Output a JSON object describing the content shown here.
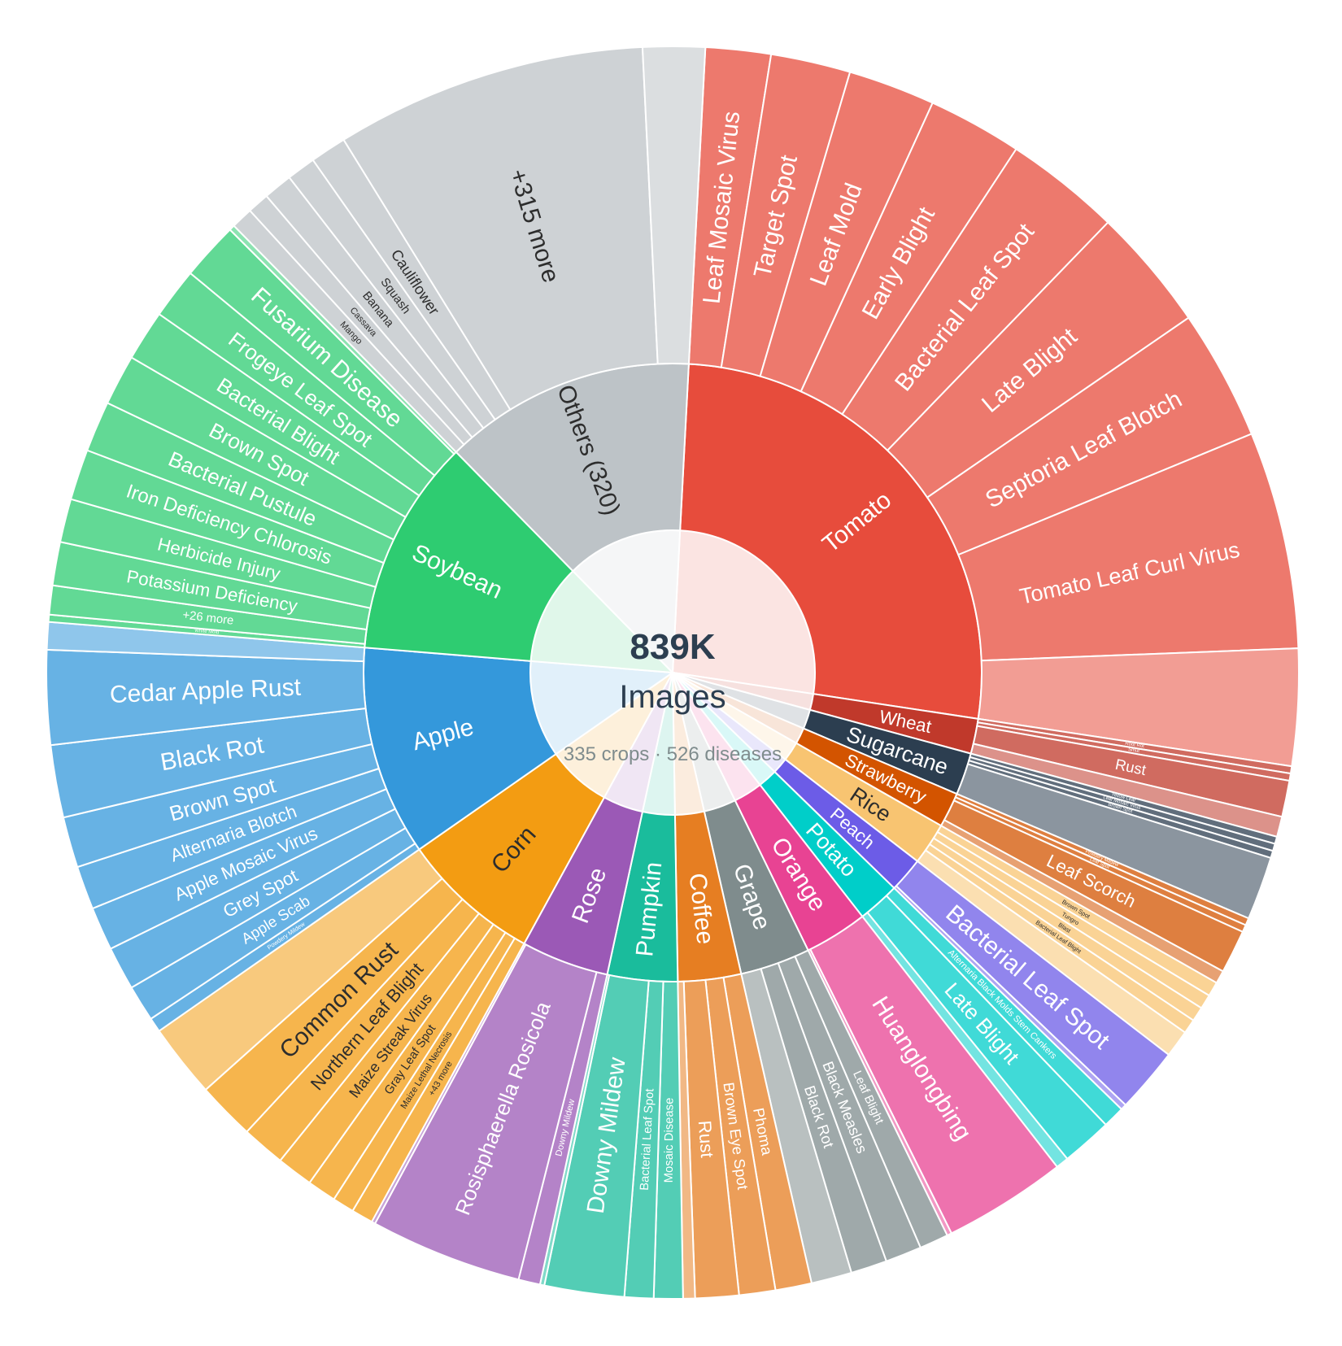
{
  "chart_data": {
    "type": "sunburst",
    "center": {
      "total": "839K",
      "unit": "Images",
      "subtitle": "335 crops · 526 diseases"
    },
    "crops": [
      {
        "name": "Tomato",
        "color": "#e74c3c",
        "weight": 145,
        "diseases": [
          {
            "name": "Leaf Mosaic Virus",
            "weight": 9
          },
          {
            "name": "Target Spot",
            "weight": 11
          },
          {
            "name": "Leaf Mold",
            "weight": 12
          },
          {
            "name": "Early Blight",
            "weight": 13
          },
          {
            "name": "Bacterial Leaf Spot",
            "weight": 16
          },
          {
            "name": "Late Blight",
            "weight": 17
          },
          {
            "name": "Septoria Leaf Blotch",
            "weight": 18
          },
          {
            "name": "Tomato Leaf Curl Virus",
            "weight": 30
          }
        ]
      },
      {
        "name": "Wheat",
        "color": "#c0392b",
        "weight": 10,
        "diseases": [
          {
            "name": "Root Rot",
            "weight": 1
          },
          {
            "name": "Smut",
            "weight": 1
          },
          {
            "name": "Rust",
            "weight": 5
          }
        ]
      },
      {
        "name": "Sugarcane",
        "color": "#2c3e50",
        "weight": 12,
        "diseases": [
          {
            "name": "Yellow Leaf",
            "weight": 1
          },
          {
            "name": "Leaf Mosaic Virus",
            "weight": 1
          },
          {
            "name": "Brown Spot",
            "weight": 1
          }
        ]
      },
      {
        "name": "Strawberry",
        "color": "#d35400",
        "weight": 10,
        "diseases": [
          {
            "name": "Powdery Mildew",
            "weight": 1
          },
          {
            "name": "Leaf Spot",
            "weight": 1
          },
          {
            "name": "Leaf Scorch",
            "weight": 6
          }
        ]
      },
      {
        "name": "Rice",
        "color": "#f8c471",
        "weight": 12,
        "diseases": [
          {
            "name": "Brown Spot",
            "weight": 2
          },
          {
            "name": "Tungro",
            "weight": 2
          },
          {
            "name": "Blast",
            "weight": 2
          },
          {
            "name": "Bacterial Leaf Blight",
            "weight": 2
          }
        ]
      },
      {
        "name": "Peach",
        "color": "#6c5ce7",
        "weight": 10,
        "diseases": [
          {
            "name": "Bacterial Leaf Spot",
            "weight": 9
          }
        ]
      },
      {
        "name": "Potato",
        "color": "#00cec9",
        "weight": 12,
        "diseases": [
          {
            "name": "Alternaria Black Molds Stem Cankers",
            "weight": 3
          },
          {
            "name": "Late Blight",
            "weight": 7
          }
        ]
      },
      {
        "name": "Orange",
        "color": "#e84393",
        "weight": 18,
        "diseases": [
          {
            "name": "Huanglongbing",
            "weight": 17
          }
        ]
      },
      {
        "name": "Grape",
        "color": "#7f8c8d",
        "weight": 20,
        "diseases": [
          {
            "name": "Leaf Blight",
            "weight": 4
          },
          {
            "name": "Black Measles",
            "weight": 5
          },
          {
            "name": "Black Rot",
            "weight": 5
          }
        ]
      },
      {
        "name": "Coffee",
        "color": "#e67e22",
        "weight": 18,
        "diseases": [
          {
            "name": "Phoma",
            "weight": 5
          },
          {
            "name": "Brown Eye Spot",
            "weight": 5
          },
          {
            "name": "Rust",
            "weight": 6
          }
        ]
      },
      {
        "name": "Pumpkin",
        "color": "#1abc9c",
        "weight": 20,
        "diseases": [
          {
            "name": "Mosaic Disease",
            "weight": 4
          },
          {
            "name": "Bacterial Leaf Spot",
            "weight": 4
          },
          {
            "name": "Downy Mildew",
            "weight": 11
          }
        ]
      },
      {
        "name": "Rose",
        "color": "#9b59b6",
        "weight": 25,
        "diseases": [
          {
            "name": "Downy Mildew",
            "weight": 3
          },
          {
            "name": "Rosisphaerella Rosicola",
            "weight": 21
          }
        ]
      },
      {
        "name": "Corn",
        "color": "#f39c12",
        "weight": 40,
        "diseases": [
          {
            "name": "+43 more",
            "weight": 3
          },
          {
            "name": "Maize Lethal Necrosis",
            "weight": 3
          },
          {
            "name": "Gray Leaf Spot",
            "weight": 4
          },
          {
            "name": "Maize Streak Virus",
            "weight": 5
          },
          {
            "name": "Northern Leaf Blight",
            "weight": 6
          },
          {
            "name": "Common Rust",
            "weight": 8
          }
        ]
      },
      {
        "name": "Apple",
        "color": "#3498db",
        "weight": 60,
        "diseases": [
          {
            "name": "Powdery Mildew",
            "weight": 2
          },
          {
            "name": "Apple Scab",
            "weight": 5
          },
          {
            "name": "Grey Spot",
            "weight": 6
          },
          {
            "name": "Apple Mosaic Virus",
            "weight": 6
          },
          {
            "name": "Alternaria Blotch",
            "weight": 6
          },
          {
            "name": "Brown Spot",
            "weight": 7
          },
          {
            "name": "Black Rot",
            "weight": 10
          },
          {
            "name": "Cedar Apple Rust",
            "weight": 13
          }
        ]
      },
      {
        "name": "Soybean",
        "color": "#2ecc71",
        "weight": 62,
        "diseases": [
          {
            "name": "White Mold",
            "weight": 1
          },
          {
            "name": "+26 more",
            "weight": 4
          },
          {
            "name": "Potassium Deficiency",
            "weight": 6
          },
          {
            "name": "Herbicide Injury",
            "weight": 6
          },
          {
            "name": "Iron Deficiency Chlorosis",
            "weight": 7
          },
          {
            "name": "Bacterial Pustule",
            "weight": 7
          },
          {
            "name": "Brown Spot",
            "weight": 7
          },
          {
            "name": "Bacterial Blight",
            "weight": 7
          },
          {
            "name": "Frogeye Leaf Spot",
            "weight": 7
          },
          {
            "name": "Fusarium Disease",
            "weight": 8
          }
        ]
      },
      {
        "name": "Others (320)",
        "color": "#bdc3c7",
        "weight": 72,
        "diseases": [
          {
            "name": "Mango",
            "weight": 3
          },
          {
            "name": "Cassava",
            "weight": 3
          },
          {
            "name": "Banana",
            "weight": 4
          },
          {
            "name": "Squash",
            "weight": 4
          },
          {
            "name": "Cauliflower",
            "weight": 5
          },
          {
            "name": "+315 more",
            "weight": 43
          }
        ]
      }
    ]
  }
}
